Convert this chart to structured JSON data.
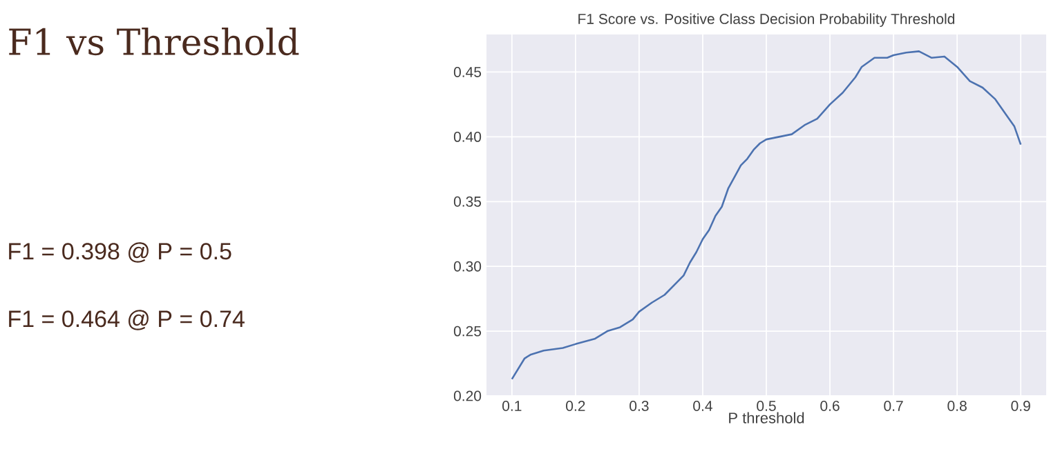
{
  "chart_data": {
    "type": "line",
    "title": "F1 Score vs. Positive Class Decision Probability Threshold",
    "xlabel": "P threshold",
    "annotations": [
      "F1 vs Threshold",
      "F1 = 0.398 @ P = 0.5",
      "F1 = 0.464 @ P = 0.74"
    ],
    "x": [
      0.1,
      0.12,
      0.13,
      0.15,
      0.18,
      0.2,
      0.23,
      0.25,
      0.27,
      0.29,
      0.3,
      0.32,
      0.34,
      0.36,
      0.37,
      0.38,
      0.39,
      0.4,
      0.41,
      0.42,
      0.43,
      0.44,
      0.45,
      0.46,
      0.47,
      0.48,
      0.49,
      0.5,
      0.52,
      0.54,
      0.56,
      0.58,
      0.6,
      0.62,
      0.64,
      0.65,
      0.67,
      0.69,
      0.7,
      0.72,
      0.74,
      0.76,
      0.78,
      0.8,
      0.82,
      0.84,
      0.86,
      0.88,
      0.89,
      0.9
    ],
    "series": [
      {
        "color": "#4c72b0",
        "values": [
          0.213,
          0.229,
          0.232,
          0.235,
          0.237,
          0.24,
          0.244,
          0.25,
          0.253,
          0.259,
          0.265,
          0.272,
          0.278,
          0.288,
          0.293,
          0.303,
          0.311,
          0.321,
          0.328,
          0.339,
          0.346,
          0.36,
          0.369,
          0.378,
          0.383,
          0.39,
          0.395,
          0.398,
          0.4,
          0.402,
          0.409,
          0.414,
          0.425,
          0.434,
          0.446,
          0.454,
          0.461,
          0.461,
          0.463,
          0.465,
          0.466,
          0.461,
          0.462,
          0.454,
          0.443,
          0.438,
          0.429,
          0.415,
          0.408,
          0.394
        ]
      }
    ],
    "xlim": [
      0.06,
      0.94
    ],
    "ylim": [
      0.2,
      0.479
    ],
    "xticks": [
      0.1,
      0.2,
      0.3,
      0.4,
      0.5,
      0.6,
      0.7,
      0.8,
      0.9
    ],
    "yticks": [
      {
        "value": 0.2,
        "label": "0.20"
      },
      {
        "value": 0.25,
        "label": "0.25"
      },
      {
        "value": 0.3,
        "label": "0.30"
      },
      {
        "value": 0.35,
        "label": "0.35"
      },
      {
        "value": 0.4,
        "label": "0.40"
      },
      {
        "value": 0.45,
        "label": "0.45"
      }
    ],
    "grid": true
  }
}
